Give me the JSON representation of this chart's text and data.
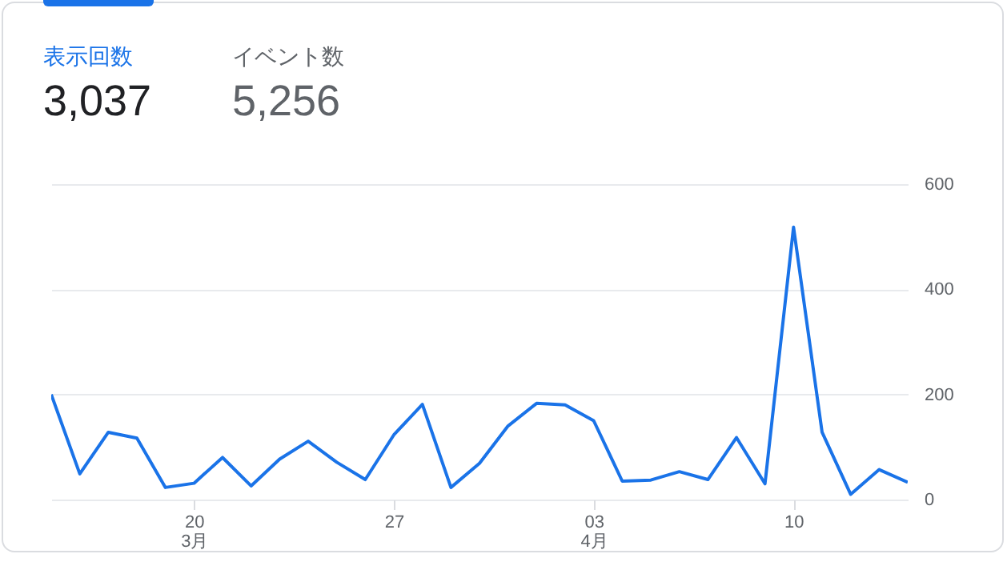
{
  "chart_data": {
    "type": "line",
    "annotations": [
      "表示回数",
      "3,037",
      "イベント数",
      "5,256"
    ],
    "x": [
      "--03-15",
      "--03-16",
      "--03-17",
      "--03-18",
      "--03-19",
      "--03-20",
      "--03-21",
      "--03-22",
      "--03-23",
      "--03-24",
      "--03-25",
      "--03-26",
      "--03-27",
      "--03-28",
      "--03-29",
      "--03-30",
      "--03-31",
      "--04-01",
      "--04-02",
      "--04-03",
      "--04-04",
      "--04-05",
      "--04-06",
      "--04-07",
      "--04-08",
      "--04-09",
      "--04-10",
      "--04-11",
      "--04-12",
      "--04-13",
      "--04-14"
    ],
    "series": [
      {
        "color": "#1a73e8",
        "values": [
          200,
          49,
          128,
          117,
          23,
          31,
          80,
          26,
          77,
          111,
          71,
          38,
          123,
          181,
          23,
          69,
          140,
          183,
          180,
          150,
          35,
          37,
          53,
          38,
          118,
          30,
          518,
          128,
          10,
          57,
          33
        ]
      }
    ],
    "xlim": [
      "--03-15",
      "--04-14"
    ],
    "xticks": [
      {
        "value": "--03-20",
        "label": "20\n3月"
      },
      {
        "value": "--03-27",
        "label": "27"
      },
      {
        "value": "--04-03",
        "label": "03\n4月"
      },
      {
        "value": "--04-10",
        "label": "10"
      }
    ],
    "ylim": [
      0,
      600
    ],
    "yticks": [
      0,
      200,
      400,
      600
    ],
    "grid": "y",
    "marker": "none",
    "line_style": "solid"
  }
}
